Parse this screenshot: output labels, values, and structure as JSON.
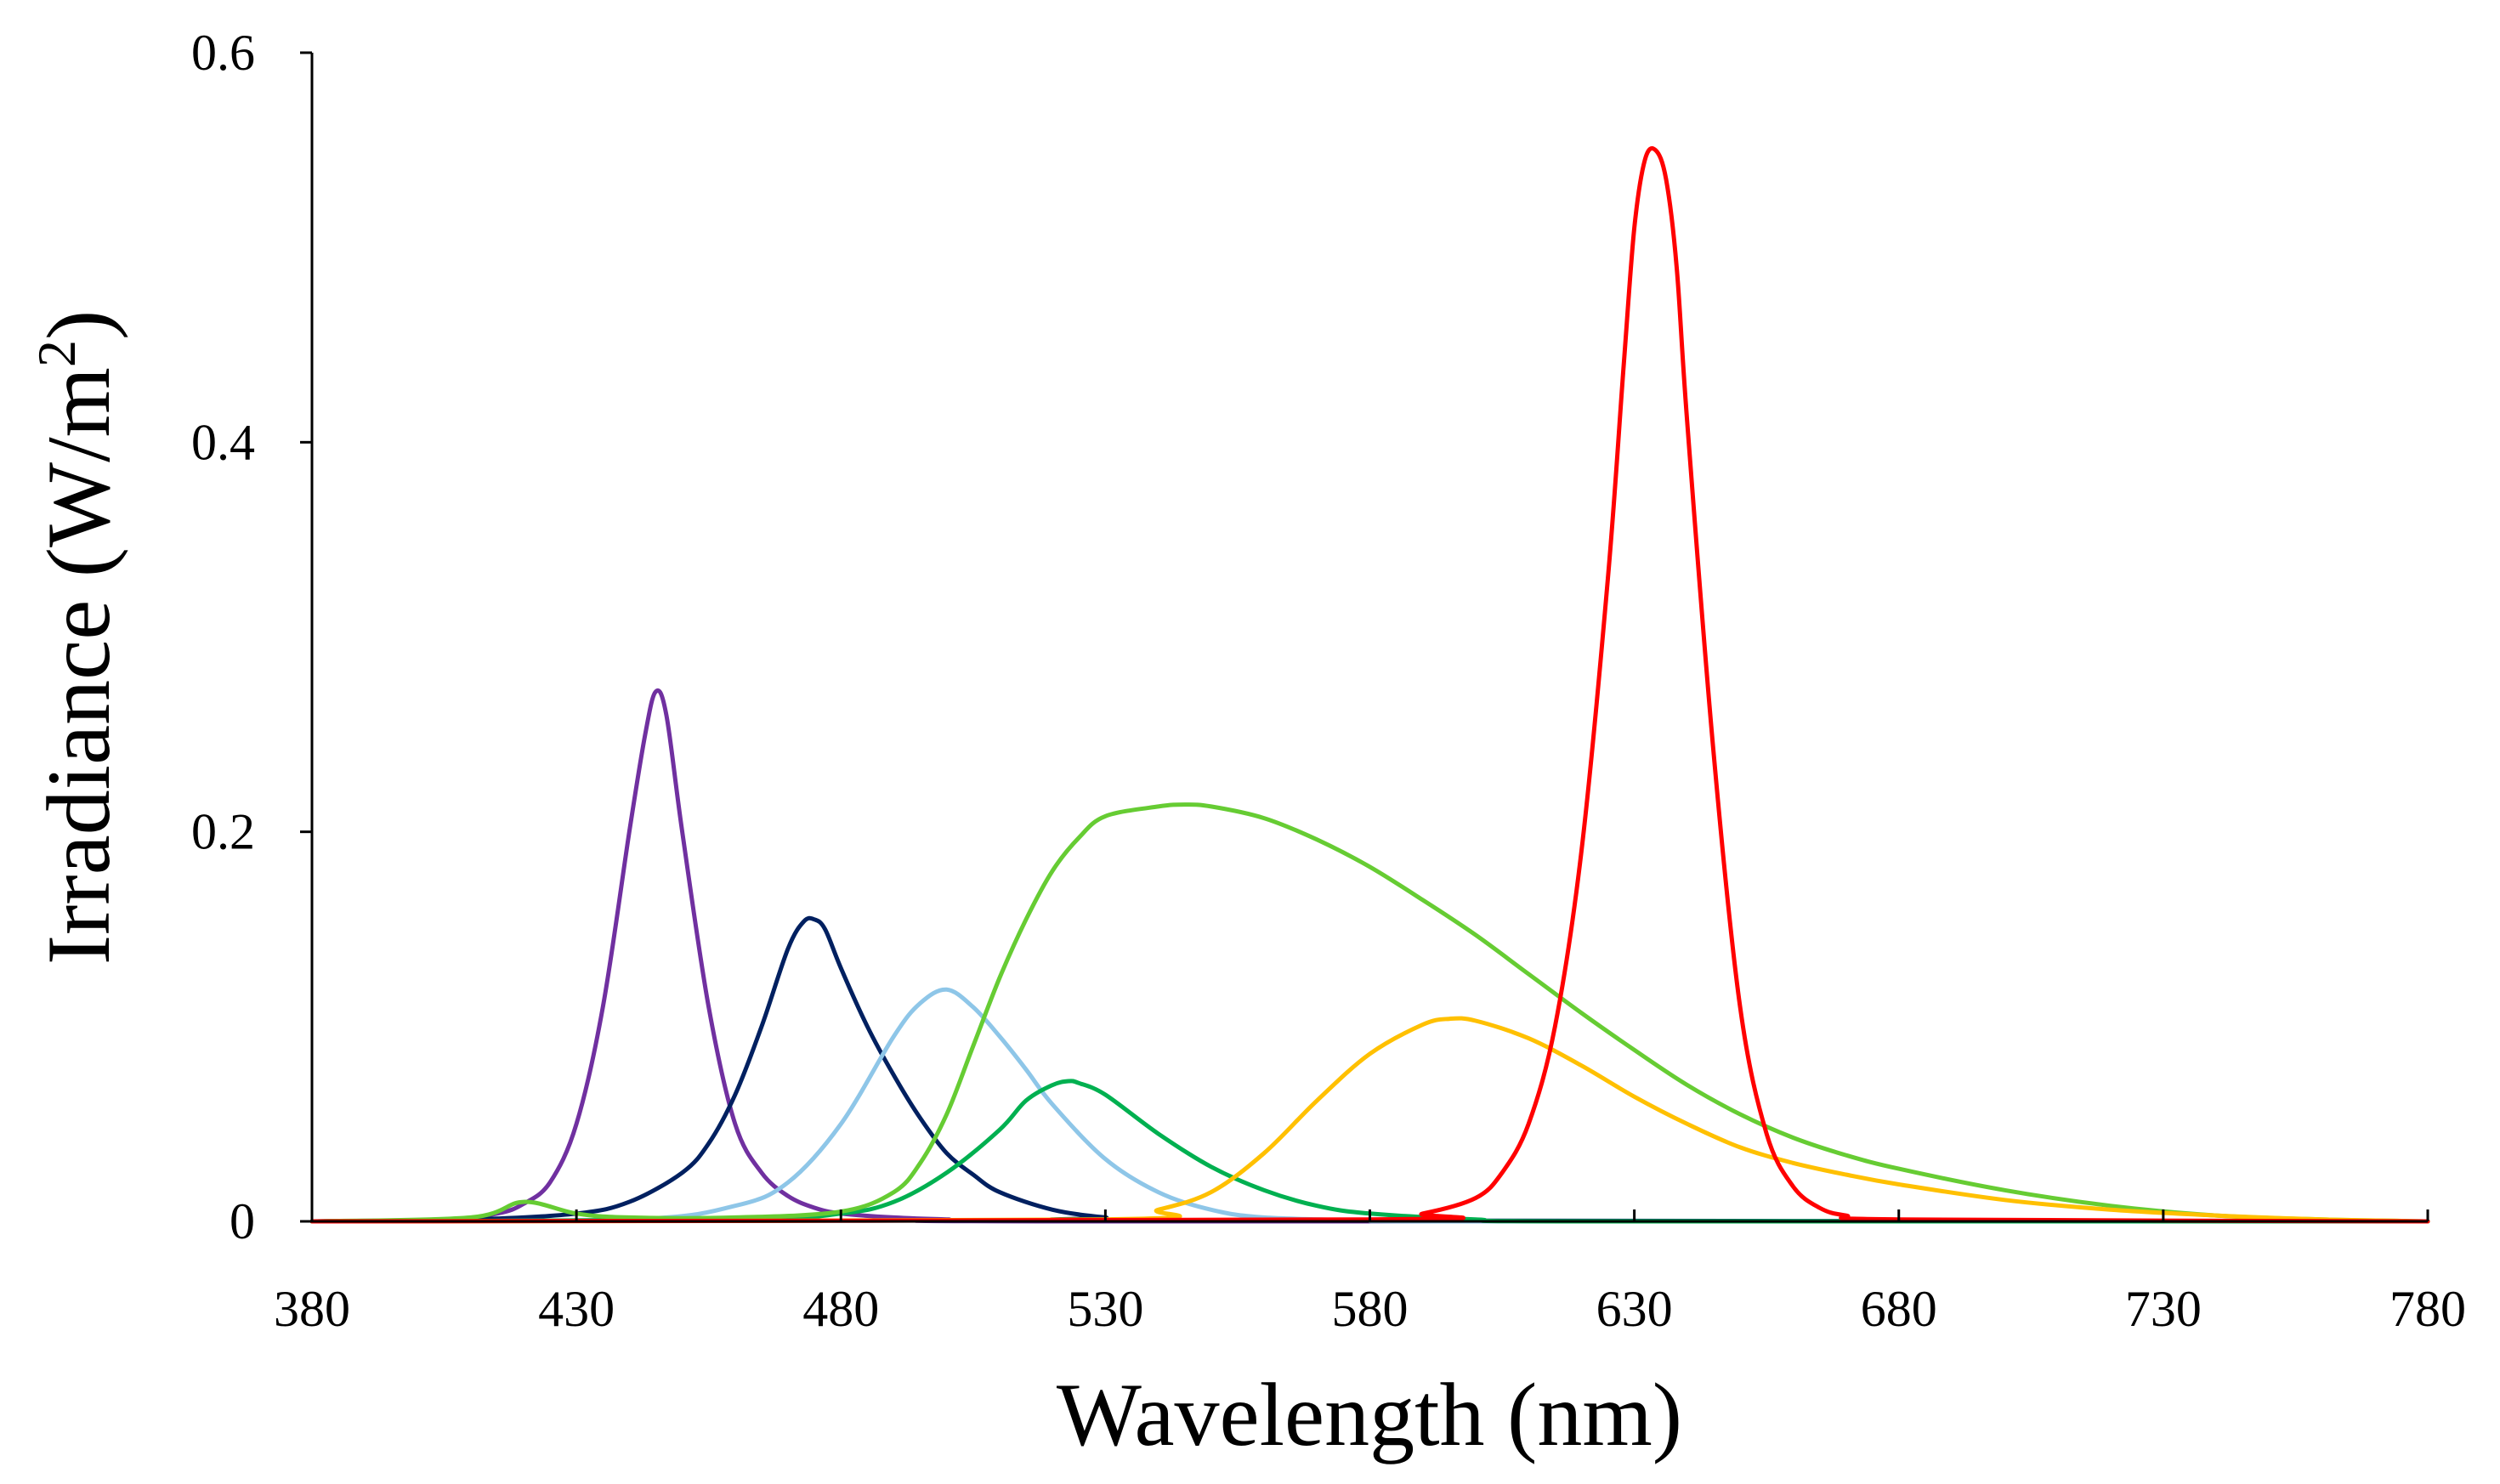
{
  "chart_data": {
    "type": "line",
    "title": "",
    "xlabel": "Wavelength (nm)",
    "ylabel_main": "Irradiance (W/m",
    "ylabel_sup": "2",
    "ylabel_close": ")",
    "xlim": [
      380,
      780
    ],
    "ylim": [
      0,
      0.6
    ],
    "xticks": [
      380,
      430,
      480,
      530,
      580,
      630,
      680,
      730,
      780
    ],
    "xtick_labels": [
      "380",
      "430",
      "480",
      "530",
      "580",
      "630",
      "680",
      "730",
      "780"
    ],
    "yticks": [
      0,
      0.2,
      0.4,
      0.6
    ],
    "ytick_labels": [
      "0",
      "0.2",
      "0.4",
      "0.6"
    ],
    "grid": false,
    "legend": "none",
    "series": [
      {
        "name": "violet",
        "color": "#7030a0",
        "x": [
          380,
          405,
          415,
          420,
          425,
          430,
          435,
          440,
          443,
          445,
          447,
          450,
          455,
          460,
          465,
          470,
          475,
          480,
          490,
          500,
          520,
          780
        ],
        "y": [
          0,
          0.001,
          0.004,
          0.009,
          0.02,
          0.05,
          0.11,
          0.2,
          0.25,
          0.272,
          0.26,
          0.2,
          0.11,
          0.05,
          0.025,
          0.013,
          0.007,
          0.004,
          0.002,
          0.001,
          0,
          0
        ]
      },
      {
        "name": "navy",
        "color": "#002060",
        "x": [
          380,
          410,
          430,
          440,
          450,
          455,
          460,
          465,
          470,
          473,
          475,
          477,
          480,
          485,
          490,
          495,
          500,
          505,
          510,
          520,
          530,
          540,
          780
        ],
        "y": [
          0,
          0.001,
          0.004,
          0.01,
          0.025,
          0.04,
          0.065,
          0.1,
          0.14,
          0.154,
          0.155,
          0.15,
          0.13,
          0.1,
          0.075,
          0.053,
          0.035,
          0.024,
          0.015,
          0.006,
          0.002,
          0.0005,
          0
        ]
      },
      {
        "name": "sky-blue",
        "color": "#8ec6e8",
        "x": [
          380,
          440,
          460,
          470,
          480,
          490,
          495,
          500,
          505,
          510,
          515,
          520,
          530,
          540,
          550,
          560,
          580,
          600,
          780
        ],
        "y": [
          0,
          0.001,
          0.008,
          0.02,
          0.05,
          0.095,
          0.112,
          0.119,
          0.11,
          0.095,
          0.078,
          0.06,
          0.032,
          0.015,
          0.006,
          0.002,
          0.0005,
          0,
          0
        ]
      },
      {
        "name": "green",
        "color": "#00b050",
        "x": [
          380,
          460,
          480,
          490,
          500,
          510,
          515,
          520,
          523,
          525,
          530,
          540,
          550,
          560,
          570,
          580,
          600,
          620,
          780
        ],
        "y": [
          0,
          0.001,
          0.004,
          0.01,
          0.025,
          0.047,
          0.062,
          0.07,
          0.072,
          0.071,
          0.065,
          0.045,
          0.028,
          0.016,
          0.008,
          0.004,
          0.001,
          0,
          0
        ]
      },
      {
        "name": "lime-green",
        "color": "#66cc33",
        "x": [
          380,
          410,
          420,
          430,
          440,
          460,
          480,
          490,
          495,
          500,
          505,
          510,
          515,
          520,
          525,
          530,
          540,
          545,
          550,
          560,
          570,
          580,
          590,
          600,
          610,
          620,
          630,
          640,
          650,
          660,
          670,
          680,
          700,
          720,
          740,
          760,
          780
        ],
        "y": [
          0,
          0.002,
          0.01,
          0.004,
          0.002,
          0.002,
          0.005,
          0.015,
          0.03,
          0.055,
          0.09,
          0.125,
          0.155,
          0.18,
          0.197,
          0.208,
          0.213,
          0.214,
          0.213,
          0.207,
          0.196,
          0.182,
          0.165,
          0.147,
          0.127,
          0.107,
          0.088,
          0.07,
          0.055,
          0.043,
          0.034,
          0.027,
          0.016,
          0.008,
          0.003,
          0.001,
          0
        ]
      },
      {
        "name": "yellow",
        "color": "#ffc000",
        "x": [
          380,
          530,
          540,
          550,
          560,
          570,
          580,
          590,
          595,
          600,
          610,
          620,
          630,
          640,
          650,
          660,
          670,
          680,
          700,
          720,
          740,
          760,
          780
        ],
        "y": [
          0,
          0.001,
          0.006,
          0.015,
          0.035,
          0.062,
          0.086,
          0.101,
          0.104,
          0.103,
          0.094,
          0.08,
          0.064,
          0.05,
          0.038,
          0.03,
          0.024,
          0.019,
          0.011,
          0.006,
          0.003,
          0.001,
          0
        ]
      },
      {
        "name": "red",
        "color": "#ff0000",
        "x": [
          380,
          580,
          590,
          600,
          605,
          610,
          615,
          620,
          625,
          628,
          630,
          632,
          634,
          636,
          638,
          640,
          645,
          650,
          655,
          660,
          665,
          670,
          680,
          780
        ],
        "y": [
          0,
          0.001,
          0.004,
          0.012,
          0.025,
          0.05,
          0.1,
          0.19,
          0.33,
          0.44,
          0.51,
          0.545,
          0.55,
          0.535,
          0.49,
          0.41,
          0.24,
          0.11,
          0.045,
          0.018,
          0.007,
          0.003,
          0.001,
          0
        ]
      }
    ]
  }
}
